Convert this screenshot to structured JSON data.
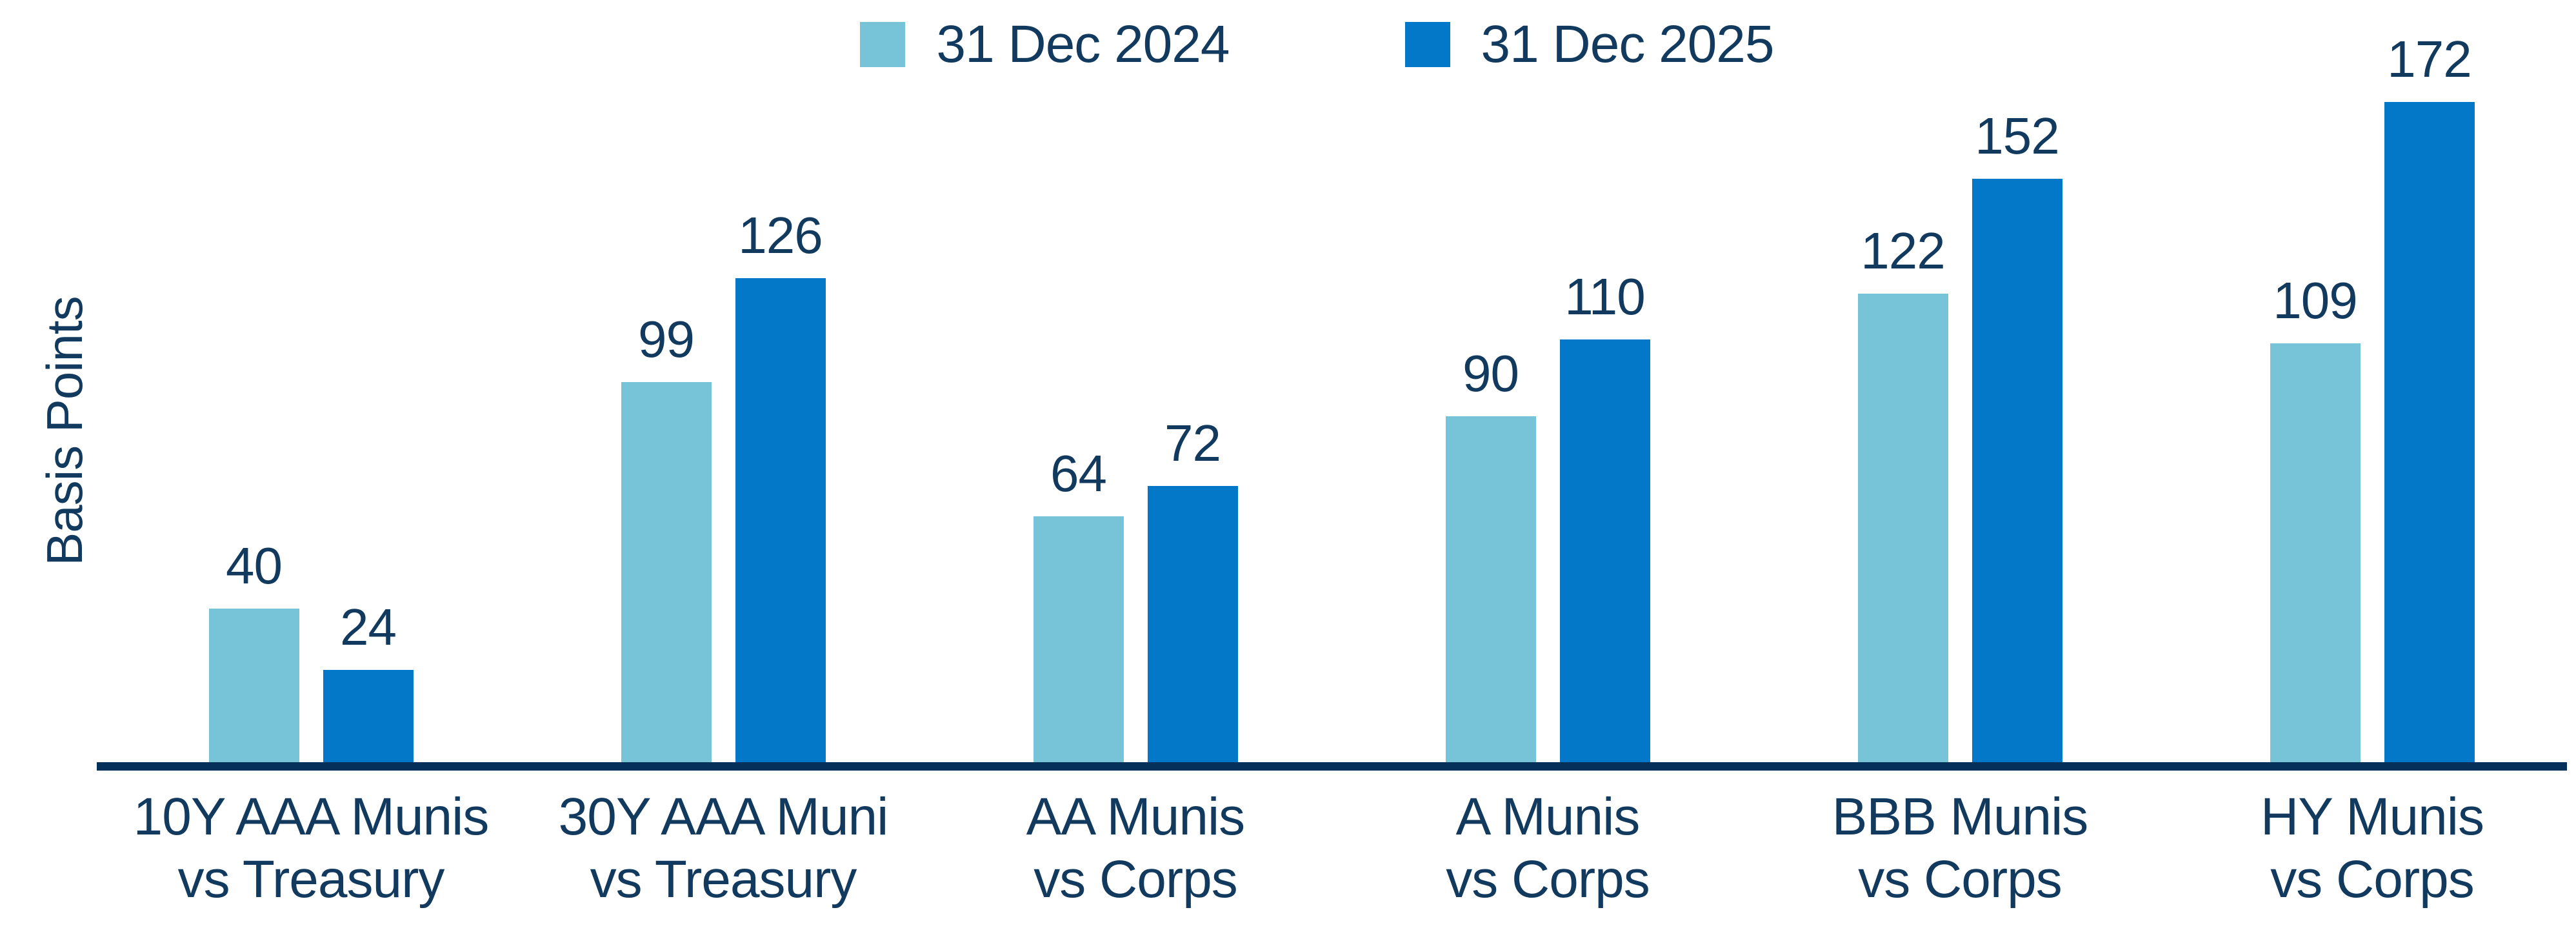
{
  "chart_data": {
    "type": "bar",
    "title": "",
    "ylabel": "Basis Points",
    "xlabel": "",
    "grid": false,
    "legend_position": "top",
    "ylim": [
      0,
      180
    ],
    "value_labels": true,
    "text_color": "#12395E",
    "axis_color": "#04305A",
    "categories": [
      "10Y AAA Munis\nvs Treasury",
      "30Y AAA Muni\nvs Treasury",
      "AA Munis\nvs Corps",
      "A Munis\nvs Corps",
      "BBB Munis\nvs Corps",
      "HY Munis\nvs Corps"
    ],
    "series": [
      {
        "name": "31 Dec 2024",
        "color": "#77C3D8",
        "values": [
          40,
          99,
          64,
          90,
          122,
          109
        ]
      },
      {
        "name": "31 Dec 2025",
        "color": "#0478C8",
        "values": [
          24,
          126,
          72,
          110,
          152,
          172
        ]
      }
    ]
  }
}
